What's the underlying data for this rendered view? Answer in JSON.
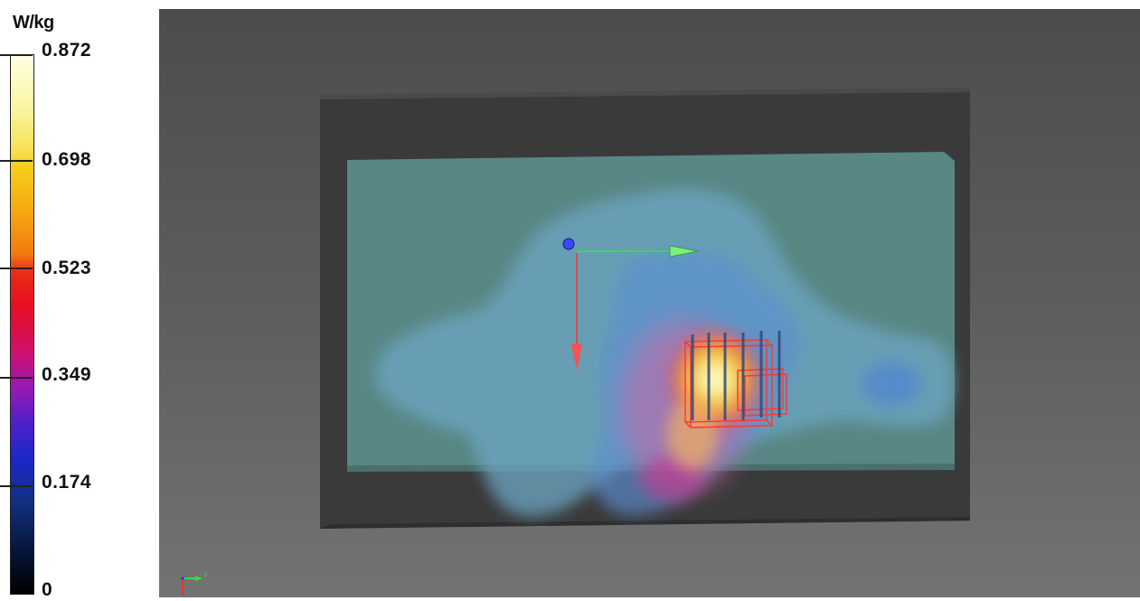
{
  "legend": {
    "unit": "W/kg",
    "ticks": [
      "0.872",
      "0.698",
      "0.523",
      "0.349",
      "0.174",
      "0"
    ]
  },
  "viewport": {
    "mini_axis_label": "Y"
  },
  "colors": {
    "background_top": "#4c4c4c",
    "background_bottom": "#737373",
    "phantom_slab": "#3a3a3a",
    "phantom_liquid": "#5e8f8c",
    "probe_outline": "#ff3030",
    "axis_x": "#ff3030",
    "axis_y": "#30e030",
    "axis_origin": "#3040ff"
  }
}
